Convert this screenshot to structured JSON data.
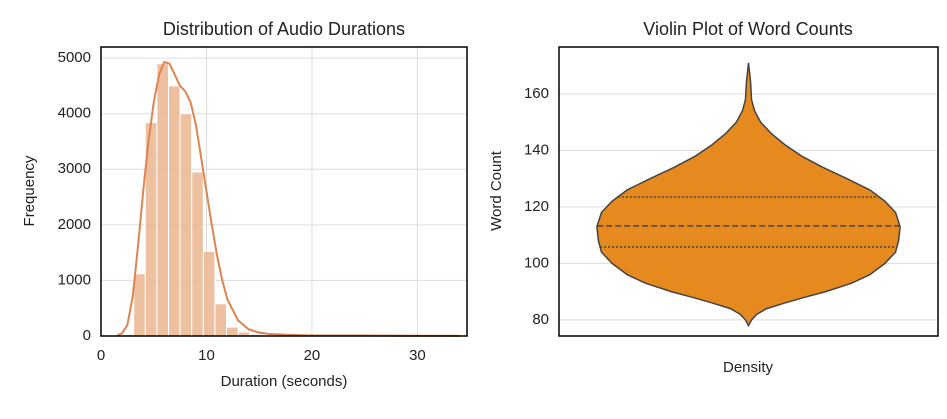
{
  "chart_data": [
    {
      "type": "histogram",
      "title": "Distribution of Audio Durations",
      "xlabel": "Duration (seconds)",
      "ylabel": "Frequency",
      "bins": [
        2.0,
        3.1,
        4.2,
        5.3,
        6.4,
        7.5,
        8.6,
        9.7,
        10.8,
        11.9,
        13.0,
        14.1,
        15.2,
        16.3,
        17.4,
        18.5,
        19.6,
        20.7,
        21.8,
        22.9,
        24.0,
        25.1,
        26.2,
        27.3,
        28.4,
        29.5,
        30.6,
        31.7,
        32.8,
        33.9
      ],
      "values": [
        30,
        1120,
        3840,
        4900,
        4500,
        4000,
        2950,
        1520,
        580,
        160,
        70,
        30,
        15,
        10,
        8,
        6,
        5,
        5,
        4,
        3,
        3,
        2,
        2,
        1,
        1,
        1,
        1,
        1,
        1
      ],
      "color": "#eab58f",
      "kde": {
        "color": "#dd8452",
        "x": [
          1.5,
          2,
          2.5,
          3,
          3.5,
          4,
          4.5,
          5,
          5.5,
          6,
          6.5,
          7,
          7.5,
          8,
          8.5,
          9,
          9.5,
          10,
          10.5,
          11,
          11.5,
          12,
          13,
          14,
          15,
          16,
          18,
          20,
          25,
          30,
          34
        ],
        "y": [
          0,
          50,
          200,
          700,
          1600,
          2600,
          3500,
          4200,
          4700,
          4930,
          4900,
          4700,
          4500,
          4400,
          4200,
          3800,
          3200,
          2600,
          2000,
          1450,
          1000,
          650,
          280,
          120,
          60,
          35,
          20,
          10,
          8,
          5,
          3
        ]
      },
      "xlim": [
        0,
        34.7
      ],
      "xticks": [
        0,
        10,
        20,
        30
      ],
      "ylim": [
        0,
        5200
      ],
      "yticks": [
        0,
        1000,
        2000,
        3000,
        4000,
        5000
      ],
      "grid": true
    },
    {
      "type": "violin",
      "title": "Violin Plot of Word Counts",
      "xlabel": "Density",
      "ylabel": "Word Count",
      "color": "#e68a1f",
      "profile": {
        "y": [
          78,
          80,
          82,
          84,
          86,
          88,
          90,
          93,
          96,
          100,
          104,
          108,
          113,
          118,
          122,
          126,
          130,
          134,
          138,
          142,
          146,
          150,
          154,
          158,
          164,
          171
        ],
        "width": [
          0,
          0.02,
          0.055,
          0.12,
          0.24,
          0.37,
          0.51,
          0.68,
          0.8,
          0.9,
          0.97,
          0.99,
          1,
          0.97,
          0.9,
          0.8,
          0.65,
          0.49,
          0.35,
          0.24,
          0.15,
          0.08,
          0.04,
          0.02,
          0.014,
          0
        ]
      },
      "quartiles": [
        105.8,
        113.3,
        123.5
      ],
      "ylim": [
        74.3,
        176.6
      ],
      "yticks": [
        80,
        100,
        120,
        140,
        160
      ],
      "grid": true
    }
  ]
}
